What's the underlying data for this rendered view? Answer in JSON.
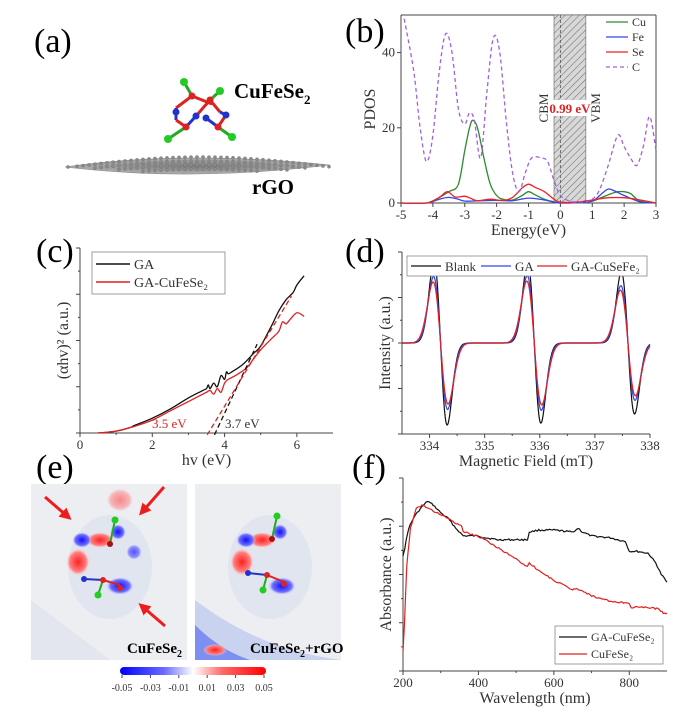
{
  "figure": {
    "panels": [
      "(a)",
      "(b)",
      "(c)",
      "(d)",
      "(e)",
      "(f)"
    ]
  },
  "panel_a": {
    "molecule_label": "CuFeSe",
    "molecule_sub": "2",
    "substrate_label": "rGO"
  },
  "panel_e": {
    "left_label": "CuFeSe",
    "left_sub": "2",
    "right_label": "CuFeSe",
    "right_sub": "2",
    "right_suffix": "+rGO",
    "colorbar_ticks": [
      "-0.05",
      "-0.03",
      "-0.01",
      "0.01",
      "0.03",
      "0.05"
    ],
    "colorbar_colors": {
      "neg": "#0000ff",
      "zero": "#ffffff",
      "pos": "#ff0000"
    }
  },
  "chart_data": [
    {
      "id": "b",
      "type": "line",
      "title": "",
      "xlabel": "Energy(eV)",
      "ylabel": "PDOS",
      "xlim": [
        -5,
        3
      ],
      "ylim": [
        0,
        50
      ],
      "xticks": [
        -5,
        -4,
        -3,
        -2,
        -1,
        0,
        1,
        2,
        3
      ],
      "yticks": [
        0,
        20,
        40
      ],
      "legend": "top-right",
      "annotations": {
        "gap": "0.99 eV",
        "cbm": "CBM",
        "vbm": "VBM",
        "gap_range": [
          -0.2,
          0.8
        ]
      },
      "series": [
        {
          "name": "Cu",
          "color": "#2e8b2e",
          "style": "solid",
          "x": [
            -5,
            -4.2,
            -3.8,
            -3.5,
            -3.2,
            -3.0,
            -2.85,
            -2.75,
            -2.6,
            -2.4,
            -2.2,
            -2.0,
            -1.8,
            -1.5,
            -1.2,
            -1.0,
            -0.8,
            -0.5,
            -0.2,
            0,
            0.5,
            1.0,
            1.3,
            1.6,
            1.8,
            2.0,
            2.2,
            2.5,
            3
          ],
          "y": [
            0,
            0,
            1.5,
            3,
            5,
            14,
            20,
            22,
            20,
            12,
            5,
            2,
            1,
            0.8,
            2,
            3,
            2.2,
            1,
            0.3,
            0,
            0.1,
            0.5,
            1.5,
            2.5,
            3,
            3,
            2.5,
            0.5,
            0
          ]
        },
        {
          "name": "Fe",
          "color": "#3344ee",
          "style": "solid",
          "x": [
            -5,
            -4.2,
            -3.8,
            -3.5,
            -3.2,
            -3.0,
            -2.5,
            -2.0,
            -1.5,
            -1.0,
            -0.5,
            -0.2,
            0,
            0.5,
            1.0,
            1.3,
            1.5,
            1.7,
            2.0,
            2.5,
            3
          ],
          "y": [
            0,
            0,
            1,
            1.5,
            1,
            0.5,
            0.6,
            0.7,
            0.6,
            1.3,
            0.8,
            0.2,
            0,
            0.1,
            0.5,
            2.5,
            3.7,
            3.2,
            2,
            0.3,
            0
          ]
        },
        {
          "name": "Se",
          "color": "#ee2222",
          "style": "solid",
          "x": [
            -5,
            -4.2,
            -3.8,
            -3.55,
            -3.3,
            -3.0,
            -2.8,
            -2.6,
            -2.2,
            -1.8,
            -1.5,
            -1.2,
            -1.0,
            -0.8,
            -0.5,
            -0.2,
            0,
            0.5,
            1.0,
            1.5,
            2.0,
            2.5,
            3
          ],
          "y": [
            0,
            0,
            1.5,
            3,
            1.6,
            1.8,
            1.2,
            0.6,
            1,
            0.7,
            1.5,
            4,
            5,
            4.2,
            3,
            1,
            0.2,
            0.2,
            0.8,
            1.4,
            1.4,
            0.8,
            0
          ]
        },
        {
          "name": "C",
          "color": "#a060e0",
          "style": "dashed",
          "x": [
            -4.9,
            -4.6,
            -4.4,
            -4.2,
            -4.0,
            -3.8,
            -3.6,
            -3.4,
            -3.2,
            -3.0,
            -2.85,
            -2.7,
            -2.5,
            -2.3,
            -2.1,
            -1.9,
            -1.7,
            -1.5,
            -1.3,
            -1.1,
            -0.9,
            -0.6,
            -0.4,
            -0.2,
            0,
            0.3,
            0.6,
            0.9,
            1.2,
            1.5,
            1.8,
            2.0,
            2.2,
            2.4,
            2.6,
            2.8,
            3.0
          ],
          "y": [
            49,
            35,
            20,
            11,
            18,
            35,
            45,
            40,
            25,
            21,
            24,
            22,
            12,
            30,
            44,
            40,
            22,
            8,
            3,
            8,
            12,
            12,
            11,
            6,
            2,
            0.5,
            0.3,
            0.5,
            3,
            10,
            18,
            15,
            12,
            10,
            15,
            23,
            14
          ]
        }
      ]
    },
    {
      "id": "c",
      "type": "line",
      "title": "",
      "xlabel": "hv (eV)",
      "ylabel": "(αhv)² (a.u.)",
      "xlim": [
        0,
        7
      ],
      "ylim": [
        0,
        1
      ],
      "xticks": [
        0,
        2,
        4,
        6
      ],
      "legend": "top-left",
      "annotations": {
        "ga_cuFeSe2_gap": "3.5 eV",
        "ga_gap": "3.7 eV"
      },
      "series": [
        {
          "name": "GA",
          "color": "#111111",
          "style": "solid",
          "x": [
            0.5,
            1.0,
            1.4,
            1.5,
            2.0,
            2.5,
            3.0,
            3.4,
            3.5,
            3.55,
            3.6,
            3.7,
            3.8,
            3.9,
            4.0,
            4.05,
            4.1,
            4.2,
            4.5,
            4.8,
            5.0,
            5.3,
            5.5,
            5.7,
            5.9,
            6.0,
            6.2
          ],
          "y": [
            0,
            0.01,
            0.03,
            0.04,
            0.08,
            0.13,
            0.19,
            0.23,
            0.24,
            0.26,
            0.24,
            0.27,
            0.25,
            0.31,
            0.29,
            0.33,
            0.32,
            0.33,
            0.37,
            0.43,
            0.47,
            0.58,
            0.66,
            0.72,
            0.76,
            0.8,
            0.85
          ]
        },
        {
          "name": "GA-CuFeSe₂",
          "color": "#e02020",
          "style": "solid",
          "x": [
            0.5,
            1.0,
            1.4,
            1.5,
            2.0,
            2.5,
            3.0,
            3.4,
            3.5,
            3.6,
            3.7,
            3.8,
            3.9,
            4.0,
            4.1,
            4.3,
            4.6,
            4.8,
            5.0,
            5.3,
            5.5,
            5.6,
            5.7,
            5.8,
            6.0,
            6.2
          ],
          "y": [
            0,
            0.01,
            0.03,
            0.035,
            0.07,
            0.12,
            0.17,
            0.21,
            0.22,
            0.23,
            0.21,
            0.24,
            0.22,
            0.27,
            0.29,
            0.31,
            0.35,
            0.4,
            0.45,
            0.51,
            0.55,
            0.6,
            0.59,
            0.61,
            0.65,
            0.63
          ]
        },
        {
          "name": "GA fit",
          "color": "#111111",
          "style": "dashed",
          "x": [
            3.72,
            4.9
          ],
          "y": [
            -0.01,
            0.48
          ]
        },
        {
          "name": "GA-CuFeSe₂ fit",
          "color": "#e02020",
          "style": "dashed",
          "x": [
            3.52,
            5.85
          ],
          "y": [
            -0.01,
            0.74
          ]
        }
      ]
    },
    {
      "id": "d",
      "type": "line",
      "title": "",
      "xlabel": "Magnetic Field (mT)",
      "ylabel": "Intensity (a.u.)",
      "xlim": [
        333.5,
        338
      ],
      "ylim": [
        -1,
        1
      ],
      "xticks": [
        334,
        335,
        336,
        337,
        338
      ],
      "legend": "top",
      "series": [
        {
          "name": "Blank",
          "color": "#111111",
          "style": "solid",
          "centers": [
            334.2,
            335.9,
            337.6
          ],
          "amplitudes": [
            0.9,
            0.88,
            0.78
          ]
        },
        {
          "name": "GA",
          "color": "#3344ee",
          "style": "solid",
          "centers": [
            334.2,
            335.9,
            337.6
          ],
          "amplitudes": [
            0.73,
            0.74,
            0.63
          ]
        },
        {
          "name": "GA-CuSeFe₂",
          "color": "#e02020",
          "style": "solid",
          "centers": [
            334.2,
            335.9,
            337.6
          ],
          "amplitudes": [
            0.67,
            0.68,
            0.58
          ]
        }
      ]
    },
    {
      "id": "f",
      "type": "line",
      "title": "",
      "xlabel": "Wavelength (nm)",
      "ylabel": "Absorbance (a.u.)",
      "xlim": [
        200,
        900
      ],
      "ylim": [
        0,
        1
      ],
      "xticks": [
        200,
        400,
        600,
        800
      ],
      "legend": "bottom-right",
      "series": [
        {
          "name": "GA-CuFeSe₂",
          "color": "#111111",
          "style": "solid",
          "x": [
            200,
            205,
            215,
            230,
            250,
            265,
            280,
            300,
            320,
            340,
            360,
            380,
            400,
            420,
            450,
            500,
            530,
            535,
            560,
            600,
            650,
            665,
            675,
            700,
            750,
            790,
            800,
            820,
            850,
            870,
            885,
            900
          ],
          "y": [
            0.6,
            0.64,
            0.74,
            0.8,
            0.85,
            0.88,
            0.86,
            0.82,
            0.79,
            0.74,
            0.7,
            0.7,
            0.7,
            0.69,
            0.68,
            0.68,
            0.68,
            0.72,
            0.73,
            0.73,
            0.72,
            0.74,
            0.72,
            0.7,
            0.69,
            0.67,
            0.62,
            0.62,
            0.61,
            0.56,
            0.5,
            0.46
          ]
        },
        {
          "name": "CuFeSe₂",
          "color": "#e02020",
          "style": "solid",
          "x": [
            200,
            204,
            210,
            220,
            235,
            250,
            260,
            280,
            300,
            320,
            345,
            355,
            360,
            380,
            410,
            450,
            500,
            530,
            535,
            560,
            600,
            650,
            660,
            700,
            750,
            800,
            805,
            850,
            880,
            890,
            900
          ],
          "y": [
            0.1,
            0.25,
            0.55,
            0.74,
            0.84,
            0.86,
            0.85,
            0.83,
            0.81,
            0.79,
            0.76,
            0.75,
            0.72,
            0.71,
            0.69,
            0.64,
            0.58,
            0.54,
            0.56,
            0.52,
            0.47,
            0.42,
            0.43,
            0.39,
            0.36,
            0.35,
            0.33,
            0.33,
            0.32,
            0.3,
            0.3
          ]
        }
      ]
    }
  ]
}
